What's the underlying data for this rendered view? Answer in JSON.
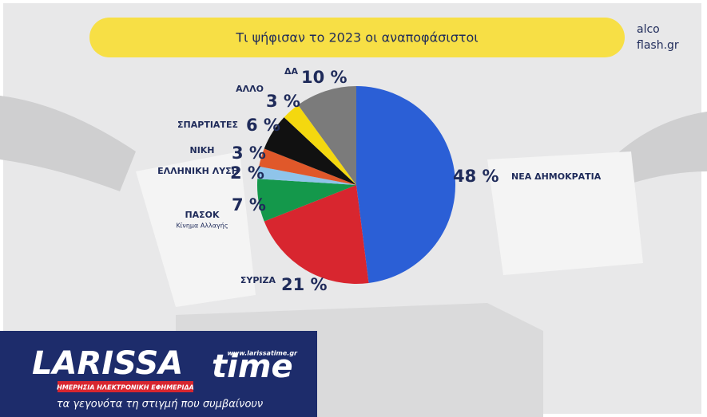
{
  "chart_data": {
    "type": "pie",
    "title": "Τι ψήφισαν το 2023 οι αναποφάσιστοι",
    "categories": [
      "ΝΕΑ ΔΗΜΟΚΡΑΤΙΑ",
      "ΣΥΡΙΖΑ",
      "ΠΑΣΟΚ",
      "ΕΛΛΗΝΙΚΗ ΛΥΣΗ",
      "ΝΙΚΗ",
      "ΣΠΑΡΤΙΑΤΕΣ",
      "ΑΛΛΟ",
      "ΔΑ"
    ],
    "sublabels": [
      null,
      null,
      "Κίνημα Αλλαγής",
      null,
      null,
      null,
      null,
      null
    ],
    "values": [
      48,
      21,
      7,
      2,
      3,
      6,
      3,
      10
    ],
    "value_labels": [
      "48 %",
      "21 %",
      "7 %",
      "2 %",
      "3 %",
      "6 %",
      "3 %",
      "10 %"
    ],
    "colors": [
      "#2b5fd6",
      "#d8262f",
      "#14984b",
      "#8fc4ea",
      "#e0582a",
      "#111111",
      "#f4d80f",
      "#7b7b7b"
    ]
  },
  "branding": {
    "source_1": "alco",
    "source_2": "flash.gr",
    "logo_1": "LARISSA",
    "logo_2": "time",
    "url": "www.larissatime.gr",
    "tagline": "ΗΜΕΡΗΣΙΑ ΗΛΕΚΤΡΟΝΙΚΗ ΕΦΗΜΕΡΙΔΑ",
    "motto": "τα γεγονότα τη στιγμή που συμβαίνουν"
  }
}
